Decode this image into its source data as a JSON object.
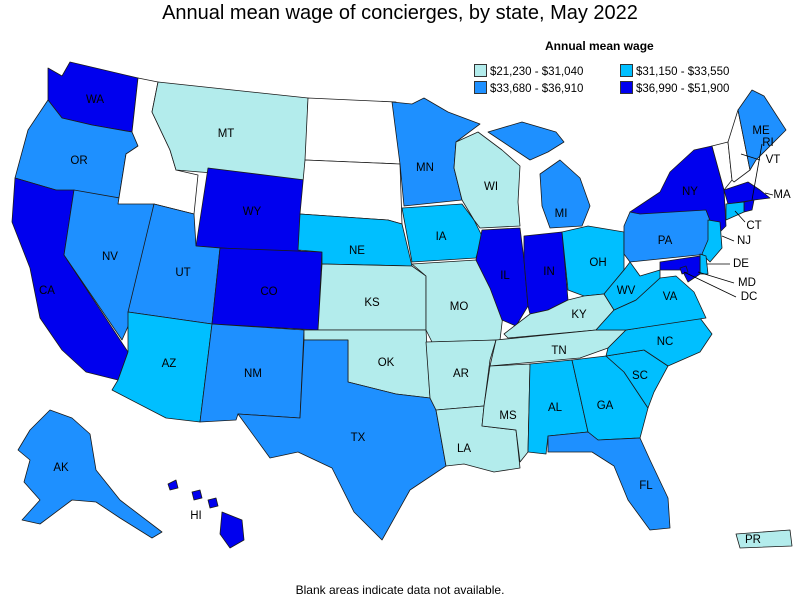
{
  "title": "Annual mean wage of concierges, by state, May 2022",
  "legend": {
    "title": "Annual mean wage",
    "items": [
      {
        "label": "$21,230 - $31,040",
        "color": "#b3ecec"
      },
      {
        "label": "$31,150 - $33,550",
        "color": "#00bfff"
      },
      {
        "label": "$33,680 - $36,910",
        "color": "#1e90ff"
      },
      {
        "label": "$36,990 - $51,900",
        "color": "#0000ee"
      }
    ]
  },
  "footnote": "Blank areas indicate data not available.",
  "colors": {
    "no_data": "#ffffff",
    "border": "#1a1a1a"
  },
  "states": {
    "WA": 3,
    "OR": 2,
    "CA": 3,
    "NV": 2,
    "ID": null,
    "MT": 0,
    "WY": 3,
    "UT": 2,
    "AZ": 1,
    "CO": 3,
    "NM": 2,
    "ND": null,
    "SD": null,
    "NE": 1,
    "KS": 0,
    "OK": 0,
    "TX": 2,
    "MN": 2,
    "IA": 1,
    "MO": 0,
    "AR": 0,
    "LA": 0,
    "WI": 0,
    "IL": 3,
    "MI": 2,
    "IN": 3,
    "OH": 1,
    "KY": 0,
    "TN": 0,
    "MS": 0,
    "AL": 1,
    "GA": 1,
    "FL": 2,
    "SC": 1,
    "NC": 1,
    "VA": 1,
    "WV": 1,
    "PA": 2,
    "NY": 3,
    "VT": null,
    "NH": null,
    "ME": 2,
    "MA": 3,
    "RI": 3,
    "CT": 1,
    "NJ": 1,
    "DE": 1,
    "MD": 3,
    "DC": 3,
    "AK": 2,
    "HI": 3,
    "PR": 0
  }
}
